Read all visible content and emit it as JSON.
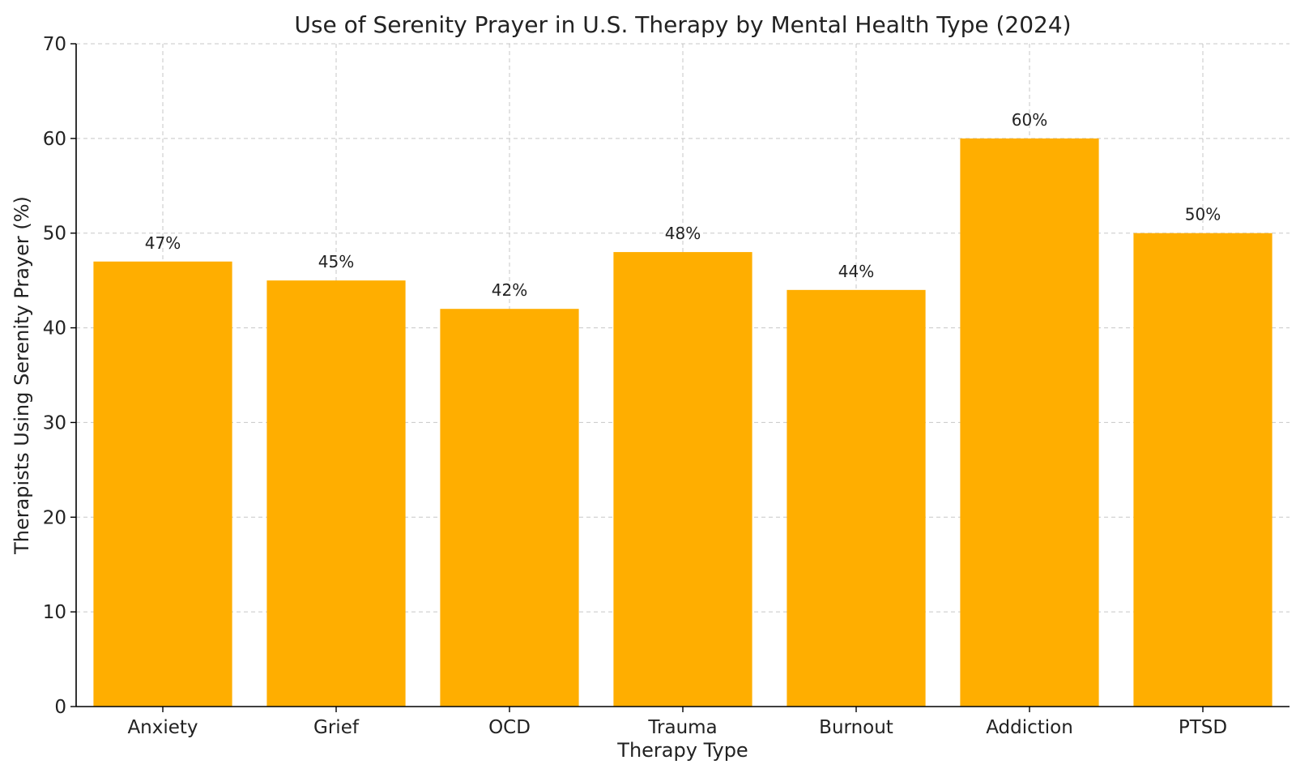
{
  "chart_data": {
    "type": "bar",
    "title": "Use of Serenity Prayer in U.S. Therapy by Mental Health Type (2024)",
    "xlabel": "Therapy Type",
    "ylabel": "Therapists Using Serenity Prayer (%)",
    "categories": [
      "Anxiety",
      "Grief",
      "OCD",
      "Trauma",
      "Burnout",
      "Addiction",
      "PTSD"
    ],
    "values": [
      47,
      45,
      42,
      48,
      44,
      60,
      50
    ],
    "data_labels": [
      "47%",
      "45%",
      "42%",
      "48%",
      "44%",
      "60%",
      "50%"
    ],
    "ylim": [
      0,
      70
    ],
    "yticks": [
      0,
      10,
      20,
      30,
      40,
      50,
      60,
      70
    ],
    "grid": true,
    "bar_color": "#FFAE00"
  }
}
